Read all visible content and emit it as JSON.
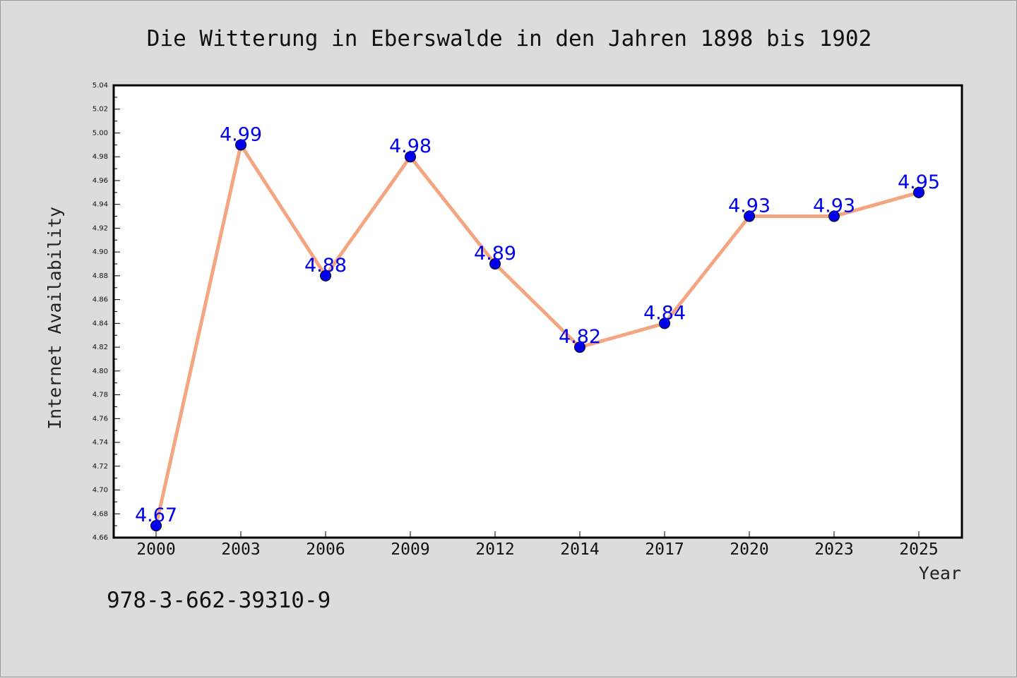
{
  "chart_data": {
    "type": "line",
    "title": "Die Witterung in Eberswalde in den Jahren 1898 bis 1902",
    "xlabel": "Year",
    "ylabel": "Internet Availability",
    "categories": [
      "2000",
      "2003",
      "2006",
      "2009",
      "2012",
      "2014",
      "2017",
      "2020",
      "2023",
      "2025"
    ],
    "series": [
      {
        "values": [
          4.67,
          4.99,
          4.88,
          4.98,
          4.89,
          4.82,
          4.84,
          4.93,
          4.93,
          4.95
        ]
      }
    ],
    "data_labels": [
      "4.67",
      "4.99",
      "4.88",
      "4.98",
      "4.89",
      "4.82",
      "4.84",
      "4.93",
      "4.93",
      "4.95"
    ],
    "ylim": [
      4.66,
      5.04
    ],
    "yticks": [
      "4.66",
      "4.68",
      "4.70",
      "4.72",
      "4.74",
      "4.76",
      "4.78",
      "4.80",
      "4.82",
      "4.84",
      "4.86",
      "4.88",
      "4.90",
      "4.92",
      "4.94",
      "4.96",
      "4.98",
      "5.00",
      "5.02",
      "5.04"
    ],
    "grid": false,
    "legend": "none",
    "colors": {
      "line": "#f4a582",
      "marker": "#0000ee",
      "label": "#0000ee",
      "background": "#dcdcdc",
      "plot_background": "#ffffff"
    }
  },
  "footer": {
    "code": "978-3-662-39310-9"
  }
}
